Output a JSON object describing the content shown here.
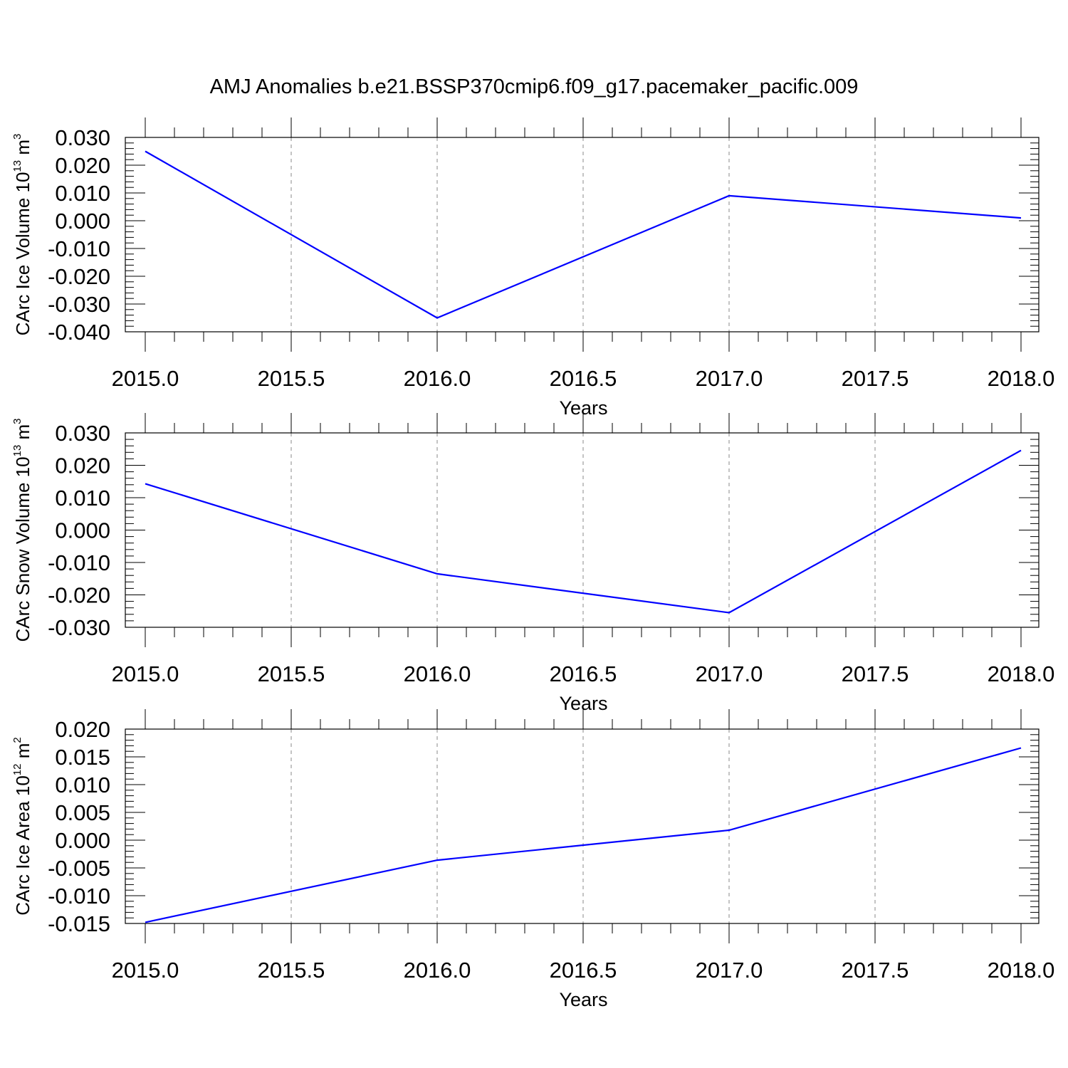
{
  "title": "AMJ Anomalies b.e21.BSSP370cmip6.f09_g17.pacemaker_pacific.009",
  "colors": {
    "line": "#0000ff",
    "axis": "#000000",
    "grid": "#888888"
  },
  "chart_data": [
    {
      "type": "line",
      "ylabel": {
        "text": "CArc Ice Volume 10",
        "exp": "13",
        "unit": " m",
        "unit_exp": "3"
      },
      "xlabel": "Years",
      "xlim": [
        2015.0,
        2018.0
      ],
      "ylim": [
        -0.04,
        0.03
      ],
      "x_ticks": [
        "2015.0",
        "2015.5",
        "2016.0",
        "2016.5",
        "2017.0",
        "2017.5",
        "2018.0"
      ],
      "y_ticks": [
        "0.030",
        "0.020",
        "0.010",
        "0.000",
        "-0.010",
        "-0.020",
        "-0.030",
        "-0.040"
      ],
      "x_grid": "dashed vertical lines at major x ticks",
      "x": [
        2015,
        2016,
        2017,
        2018
      ],
      "values": [
        0.025,
        -0.035,
        0.009,
        0.001
      ]
    },
    {
      "type": "line",
      "ylabel": {
        "text": "CArc Snow Volume 10",
        "exp": "13",
        "unit": " m",
        "unit_exp": "3"
      },
      "xlabel": "Years",
      "xlim": [
        2015.0,
        2018.0
      ],
      "ylim": [
        -0.03,
        0.03
      ],
      "x_ticks": [
        "2015.0",
        "2015.5",
        "2016.0",
        "2016.5",
        "2017.0",
        "2017.5",
        "2018.0"
      ],
      "y_ticks": [
        "0.030",
        "0.020",
        "0.010",
        "0.000",
        "-0.010",
        "-0.020",
        "-0.030"
      ],
      "x_grid": "dashed vertical lines at major x ticks",
      "x": [
        2015,
        2016,
        2017,
        2018
      ],
      "values": [
        0.0143,
        -0.0135,
        -0.0255,
        0.0246
      ]
    },
    {
      "type": "line",
      "ylabel": {
        "text": "CArc Ice Area 10",
        "exp": "12",
        "unit": " m",
        "unit_exp": "2"
      },
      "xlabel": "Years",
      "xlim": [
        2015.0,
        2018.0
      ],
      "ylim": [
        -0.015,
        0.02
      ],
      "x_ticks": [
        "2015.0",
        "2015.5",
        "2016.0",
        "2016.5",
        "2017.0",
        "2017.5",
        "2018.0"
      ],
      "y_ticks": [
        "0.020",
        "0.015",
        "0.010",
        "0.005",
        "0.000",
        "-0.005",
        "-0.010",
        "-0.015"
      ],
      "x_grid": "dashed vertical lines at major x ticks",
      "x": [
        2015,
        2016,
        2017,
        2018
      ],
      "values": [
        -0.0148,
        -0.0036,
        0.0018,
        0.0166
      ]
    }
  ]
}
